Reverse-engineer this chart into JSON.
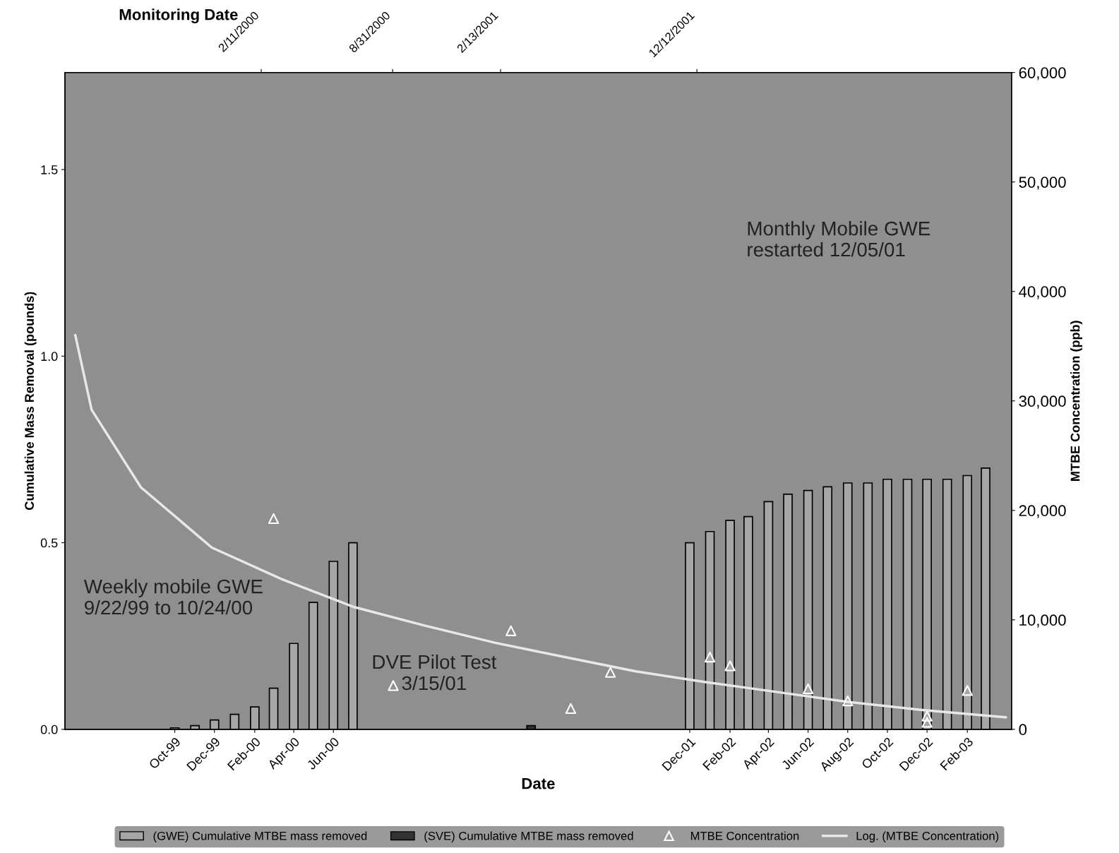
{
  "chart_data": {
    "type": "bar",
    "xlabel": "Date",
    "x2label": "Monitoring Date",
    "ylabel": "Cumulative Mass Removal (pounds)",
    "y2label": "MTBE Concentration (ppb)",
    "xlim": [
      "1999-04-15",
      "2003-04-10"
    ],
    "xticks": [
      {
        "value": "1999-10-01",
        "label": "Oct-99"
      },
      {
        "value": "1999-12-01",
        "label": "Dec-99"
      },
      {
        "value": "2000-02-01",
        "label": "Feb-00"
      },
      {
        "value": "2000-04-01",
        "label": "Apr-00"
      },
      {
        "value": "2000-06-01",
        "label": "Jun-00"
      },
      {
        "value": "2001-12-01",
        "label": "Dec-01"
      },
      {
        "value": "2002-02-01",
        "label": "Feb-02"
      },
      {
        "value": "2002-04-01",
        "label": "Apr-02"
      },
      {
        "value": "2002-06-01",
        "label": "Jun-02"
      },
      {
        "value": "2002-08-01",
        "label": "Aug-02"
      },
      {
        "value": "2002-10-01",
        "label": "Oct-02"
      },
      {
        "value": "2002-12-01",
        "label": "Dec-02"
      },
      {
        "value": "2003-02-01",
        "label": "Feb-03"
      }
    ],
    "x2lim": [
      "1999-04-15",
      "2003-04-10"
    ],
    "x2ticks": [
      {
        "value": "2000-02-11",
        "label": "2/11/2000"
      },
      {
        "value": "2000-08-31",
        "label": "8/31/2000"
      },
      {
        "value": "2001-02-13",
        "label": "2/13/2001"
      },
      {
        "value": "2001-12-12",
        "label": "12/12/2001"
      }
    ],
    "ylim": [
      0,
      1.76
    ],
    "yticks": [
      {
        "value": 0,
        "label": "0.0"
      },
      {
        "value": 0.5,
        "label": "0.5"
      },
      {
        "value": 1.0,
        "label": "1.0"
      },
      {
        "value": 1.5,
        "label": "1.5"
      }
    ],
    "y2lim": [
      0,
      60000
    ],
    "y2ticks": [
      0,
      {
        "value": 10000,
        "label": "10,000"
      },
      {
        "value": 20000,
        "label": "20,000"
      },
      {
        "value": 30000,
        "label": "30,000"
      },
      {
        "value": 40000,
        "label": "40,000"
      },
      {
        "value": 50000,
        "label": "50,000"
      },
      {
        "value": 60000,
        "label": "60,000"
      }
    ],
    "grid": false,
    "legend": "bottom",
    "annotations": [
      "Weekly mobile GWE\n9/22/99 to 10/24/00",
      "DVE Pilot Test\n3/15/01",
      "Monthly Mobile GWE\nrestarted 12/05/01"
    ],
    "series": [
      {
        "name": "(GWE) Cumulative MTBE mass removed",
        "color": "#a6a6a6",
        "x": [
          "1999-10-01",
          "1999-11-01",
          "1999-12-01",
          "2000-01-01",
          "2000-02-01",
          "2000-03-01",
          "2000-04-01",
          "2000-05-01",
          "2000-06-01",
          "2000-07-01",
          "2001-12-01",
          "2002-01-01",
          "2002-02-01",
          "2002-03-01",
          "2002-04-01",
          "2002-05-01",
          "2002-06-01",
          "2002-07-01",
          "2002-08-01",
          "2002-09-01",
          "2002-10-01",
          "2002-11-01",
          "2002-12-01",
          "2003-01-01",
          "2003-02-01",
          "2003-03-01"
        ],
        "values": [
          0.004,
          0.01,
          0.025,
          0.04,
          0.06,
          0.11,
          0.23,
          0.34,
          0.45,
          0.5,
          0.5,
          0.53,
          0.56,
          0.57,
          0.61,
          0.63,
          0.64,
          0.65,
          0.66,
          0.66,
          0.67,
          0.67,
          0.67,
          0.67,
          0.68,
          0.7
        ]
      },
      {
        "name": "(SVE) Cumulative MTBE mass removed",
        "color": "#333333",
        "x": [
          "2001-04-01"
        ],
        "values": [
          0.01
        ]
      },
      {
        "name": "MTBE Concentration",
        "type": "scatter",
        "axis": "y2",
        "color": "#ffffff",
        "marker": "triangle",
        "x": [
          "2000-03-01",
          "2000-09-01",
          "2001-03-01",
          "2001-06-01",
          "2001-08-01",
          "2002-01-01",
          "2002-02-01",
          "2002-06-01",
          "2002-08-01",
          "2002-12-01",
          "2002-12-01",
          "2003-02-01"
        ],
        "values": [
          19250,
          4000,
          9000,
          1900,
          5200,
          6600,
          5800,
          3700,
          2600,
          1200,
          650,
          3550
        ]
      },
      {
        "name": "Log. (MTBE Concentration)",
        "type": "line",
        "axis": "y2",
        "color": "#e8e8e8",
        "line_style": "solid",
        "marker": "none",
        "x": [
          "1999-05-01",
          "1999-05-26",
          "1999-08-10",
          "1999-11-27",
          "2000-03-14",
          "2000-07-01",
          "2000-10-18",
          "2001-02-05",
          "2001-05-23",
          "2001-09-09",
          "2001-12-27",
          "2002-04-15",
          "2002-08-01",
          "2002-11-18",
          "2003-04-01"
        ],
        "values": [
          36000,
          29200,
          22100,
          16600,
          13700,
          11200,
          9500,
          7900,
          6600,
          5300,
          4300,
          3400,
          2500,
          1800,
          1100
        ]
      }
    ]
  }
}
